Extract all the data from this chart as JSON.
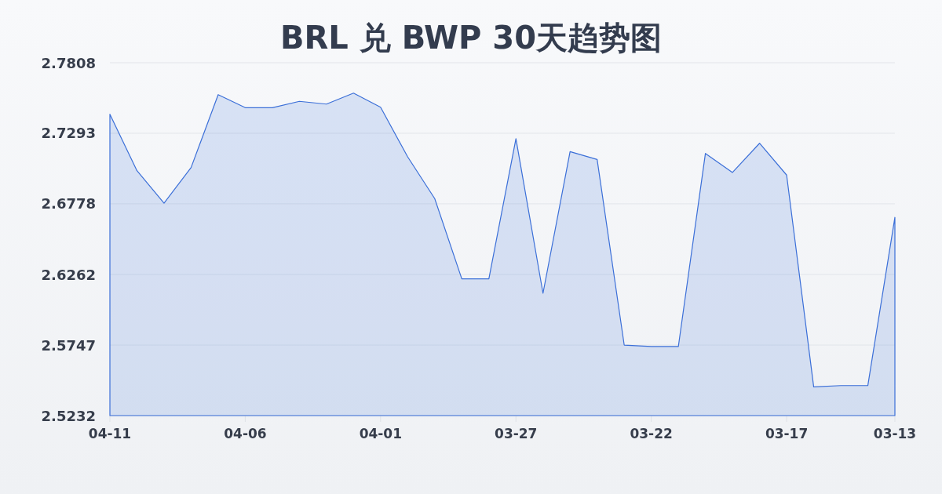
{
  "chart_data": {
    "type": "area",
    "title": "BRL 兑 BWP 30天趋势图",
    "categories": [
      "04-11",
      null,
      null,
      null,
      null,
      "04-06",
      null,
      null,
      null,
      null,
      "04-01",
      null,
      null,
      null,
      null,
      "03-27",
      null,
      null,
      null,
      null,
      "03-22",
      null,
      null,
      null,
      null,
      "03-17",
      null,
      null,
      null,
      "03-13"
    ],
    "series": [
      {
        "color": "#3b6fd8",
        "values": [
          2.7432,
          2.702,
          2.6783,
          2.7043,
          2.7575,
          2.748,
          2.748,
          2.7526,
          2.7506,
          2.7586,
          2.7483,
          2.7121,
          2.6816,
          2.623,
          2.623,
          2.7254,
          2.6125,
          2.7159,
          2.7102,
          2.5747,
          2.5736,
          2.5736,
          2.7146,
          2.7007,
          2.722,
          2.6988,
          2.5442,
          2.5451,
          2.5452,
          2.6679
        ]
      }
    ],
    "ylim": [
      2.5232,
      2.7808
    ],
    "yticks": [
      2.5232,
      2.5747,
      2.6262,
      2.6778,
      2.7293,
      2.7808
    ],
    "grid": "y"
  }
}
